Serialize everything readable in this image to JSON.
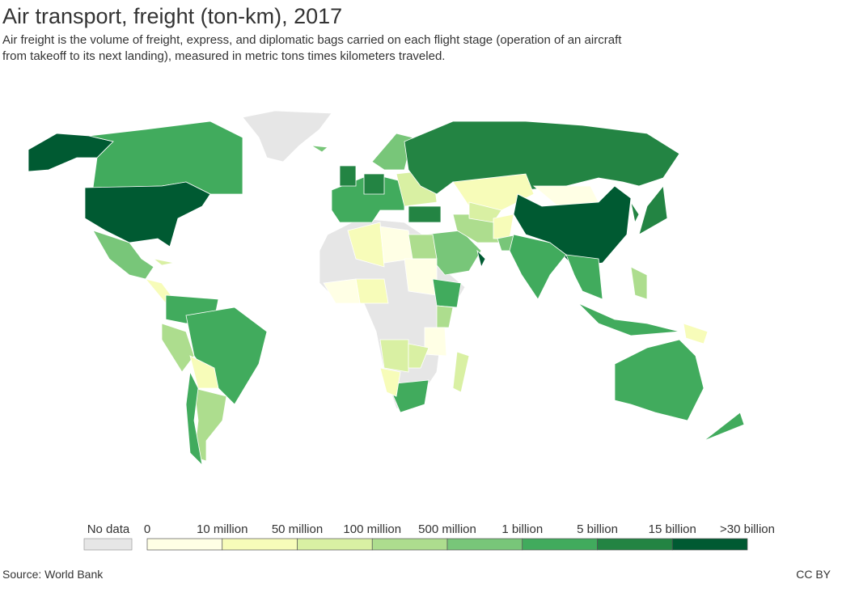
{
  "header": {
    "title": "Air transport, freight (ton-km), 2017",
    "subtitle_lines": [
      "Air freight is the volume of freight, express, and diplomatic bags carried on each flight stage (operation of an aircraft",
      "from takeoff to its next landing), measured in metric tons times kilometers traveled."
    ]
  },
  "legend": {
    "no_data_label": "No data",
    "no_data_color": "#e6e6e6",
    "labels": [
      "0",
      "10 million",
      "50 million",
      "100 million",
      "500 million",
      "1 billion",
      "5 billion",
      "15 billion",
      ">30 billion"
    ],
    "colors": [
      "#ffffe5",
      "#f7fcb9",
      "#d9f0a3",
      "#addd8e",
      "#78c679",
      "#41ab5d",
      "#238443",
      "#005a32"
    ]
  },
  "footer": {
    "source": "Source: World Bank",
    "license": "CC BY"
  }
}
